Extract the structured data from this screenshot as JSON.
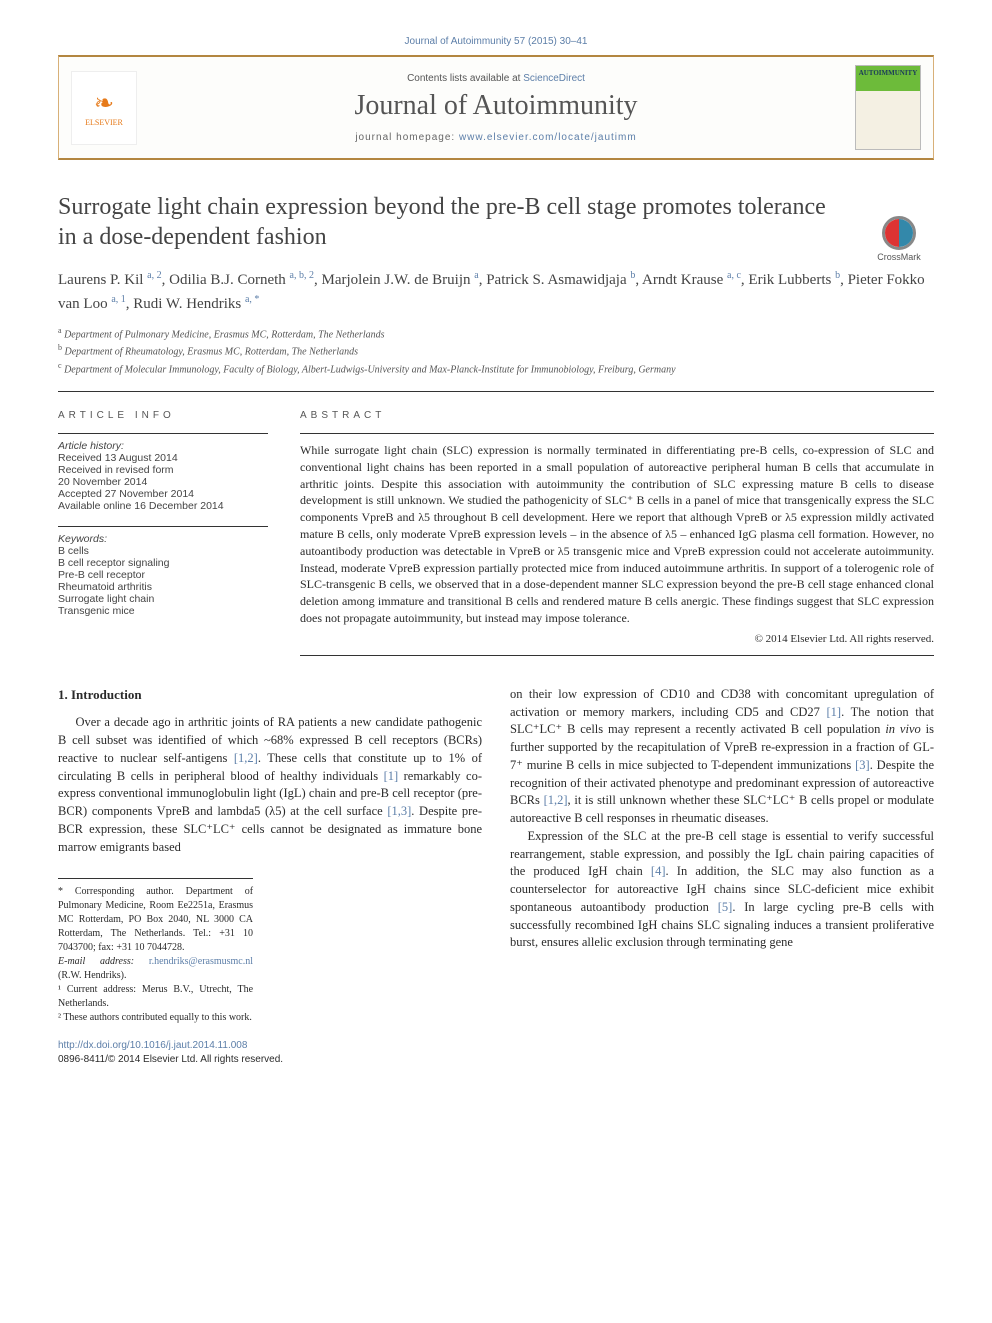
{
  "colors": {
    "link": "#5c7ea8",
    "accent": "#e67a1a",
    "rule": "#333333",
    "banner_border": "#d8b078"
  },
  "journal_header_link": "Journal of Autoimmunity 57 (2015) 30–41",
  "banner": {
    "contents_prefix": "Contents lists available at ",
    "contents_link": "ScienceDirect",
    "journal_title": "Journal of Autoimmunity",
    "homepage_prefix": "journal homepage: ",
    "homepage_url": "www.elsevier.com/locate/jautimm",
    "elsevier_label": "ELSEVIER",
    "cover_label": "AUTOIMMUNITY"
  },
  "article": {
    "title": "Surrogate light chain expression beyond the pre-B cell stage promotes tolerance in a dose-dependent fashion",
    "crossmark": "CrossMark",
    "authors_html": "Laurens P. Kil <span class='sup'>a, 2</span>, Odilia B.J. Corneth <span class='sup'>a, b, 2</span>, Marjolein J.W. de Bruijn <span class='sup'>a</span>, Patrick S. Asmawidjaja <span class='sup'>b</span>, Arndt Krause <span class='sup'>a, c</span>, Erik Lubberts <span class='sup'>b</span>, Pieter Fokko van Loo <span class='sup'>a, 1</span>, Rudi W. Hendriks <span class='sup'>a, *</span>",
    "affiliations": [
      {
        "sup": "a",
        "text": "Department of Pulmonary Medicine, Erasmus MC, Rotterdam, The Netherlands"
      },
      {
        "sup": "b",
        "text": "Department of Rheumatology, Erasmus MC, Rotterdam, The Netherlands"
      },
      {
        "sup": "c",
        "text": "Department of Molecular Immunology, Faculty of Biology, Albert-Ludwigs-University and Max-Planck-Institute for Immunobiology, Freiburg, Germany"
      }
    ]
  },
  "info": {
    "heading": "ARTICLE INFO",
    "history_label": "Article history:",
    "history": [
      "Received 13 August 2014",
      "Received in revised form",
      "20 November 2014",
      "Accepted 27 November 2014",
      "Available online 16 December 2014"
    ],
    "keywords_label": "Keywords:",
    "keywords": [
      "B cells",
      "B cell receptor signaling",
      "Pre-B cell receptor",
      "Rheumatoid arthritis",
      "Surrogate light chain",
      "Transgenic mice"
    ]
  },
  "abstract": {
    "heading": "ABSTRACT",
    "text": "While surrogate light chain (SLC) expression is normally terminated in differentiating pre-B cells, co-expression of SLC and conventional light chains has been reported in a small population of autoreactive peripheral human B cells that accumulate in arthritic joints. Despite this association with autoimmunity the contribution of SLC expressing mature B cells to disease development is still unknown. We studied the pathogenicity of SLC⁺ B cells in a panel of mice that transgenically express the SLC components VpreB and λ5 throughout B cell development. Here we report that although VpreB or λ5 expression mildly activated mature B cells, only moderate VpreB expression levels – in the absence of λ5 – enhanced IgG plasma cell formation. However, no autoantibody production was detectable in VpreB or λ5 transgenic mice and VpreB expression could not accelerate autoimmunity. Instead, moderate VpreB expression partially protected mice from induced autoimmune arthritis. In support of a tolerogenic role of SLC-transgenic B cells, we observed that in a dose-dependent manner SLC expression beyond the pre-B cell stage enhanced clonal deletion among immature and transitional B cells and rendered mature B cells anergic. These findings suggest that SLC expression does not propagate autoimmunity, but instead may impose tolerance.",
    "copyright": "© 2014 Elsevier Ltd. All rights reserved."
  },
  "intro": {
    "heading": "1. Introduction",
    "p1": "Over a decade ago in arthritic joints of RA patients a new candidate pathogenic B cell subset was identified of which ~68% expressed B cell receptors (BCRs) reactive to nuclear self-antigens [1,2]. These cells that constitute up to 1% of circulating B cells in peripheral blood of healthy individuals [1] remarkably co-express conventional immunoglobulin light (IgL) chain and pre-B cell receptor (pre-BCR) components VpreB and lambda5 (λ5) at the cell surface [1,3]. Despite pre-BCR expression, these SLC⁺LC⁺ cells cannot be designated as immature bone marrow emigrants based",
    "p2": "on their low expression of CD10 and CD38 with concomitant upregulation of activation or memory markers, including CD5 and CD27 [1]. The notion that SLC⁺LC⁺ B cells may represent a recently activated B cell population in vivo is further supported by the recapitulation of VpreB re-expression in a fraction of GL-7⁺ murine B cells in mice subjected to T-dependent immunizations [3]. Despite the recognition of their activated phenotype and predominant expression of autoreactive BCRs [1,2], it is still unknown whether these SLC⁺LC⁺ B cells propel or modulate autoreactive B cell responses in rheumatic diseases.",
    "p3": "Expression of the SLC at the pre-B cell stage is essential to verify successful rearrangement, stable expression, and possibly the IgL chain pairing capacities of the produced IgH chain [4]. In addition, the SLC may also function as a counterselector for autoreactive IgH chains since SLC-deficient mice exhibit spontaneous autoantibody production [5]. In large cycling pre-B cells with successfully recombined IgH chains SLC signaling induces a transient proliferative burst, ensures allelic exclusion through terminating gene"
  },
  "footnotes": {
    "corr": "* Corresponding author. Department of Pulmonary Medicine, Room Ee2251a, Erasmus MC Rotterdam, PO Box 2040, NL 3000 CA Rotterdam, The Netherlands. Tel.: +31 10 7043700; fax: +31 10 7044728.",
    "email_label": "E-mail address:",
    "email": "r.hendriks@erasmusmc.nl",
    "email_suffix": "(R.W. Hendriks).",
    "f1": "¹ Current address: Merus B.V., Utrecht, The Netherlands.",
    "f2": "² These authors contributed equally to this work."
  },
  "doi": {
    "url": "http://dx.doi.org/10.1016/j.jaut.2014.11.008",
    "line2": "0896-8411/© 2014 Elsevier Ltd. All rights reserved."
  }
}
